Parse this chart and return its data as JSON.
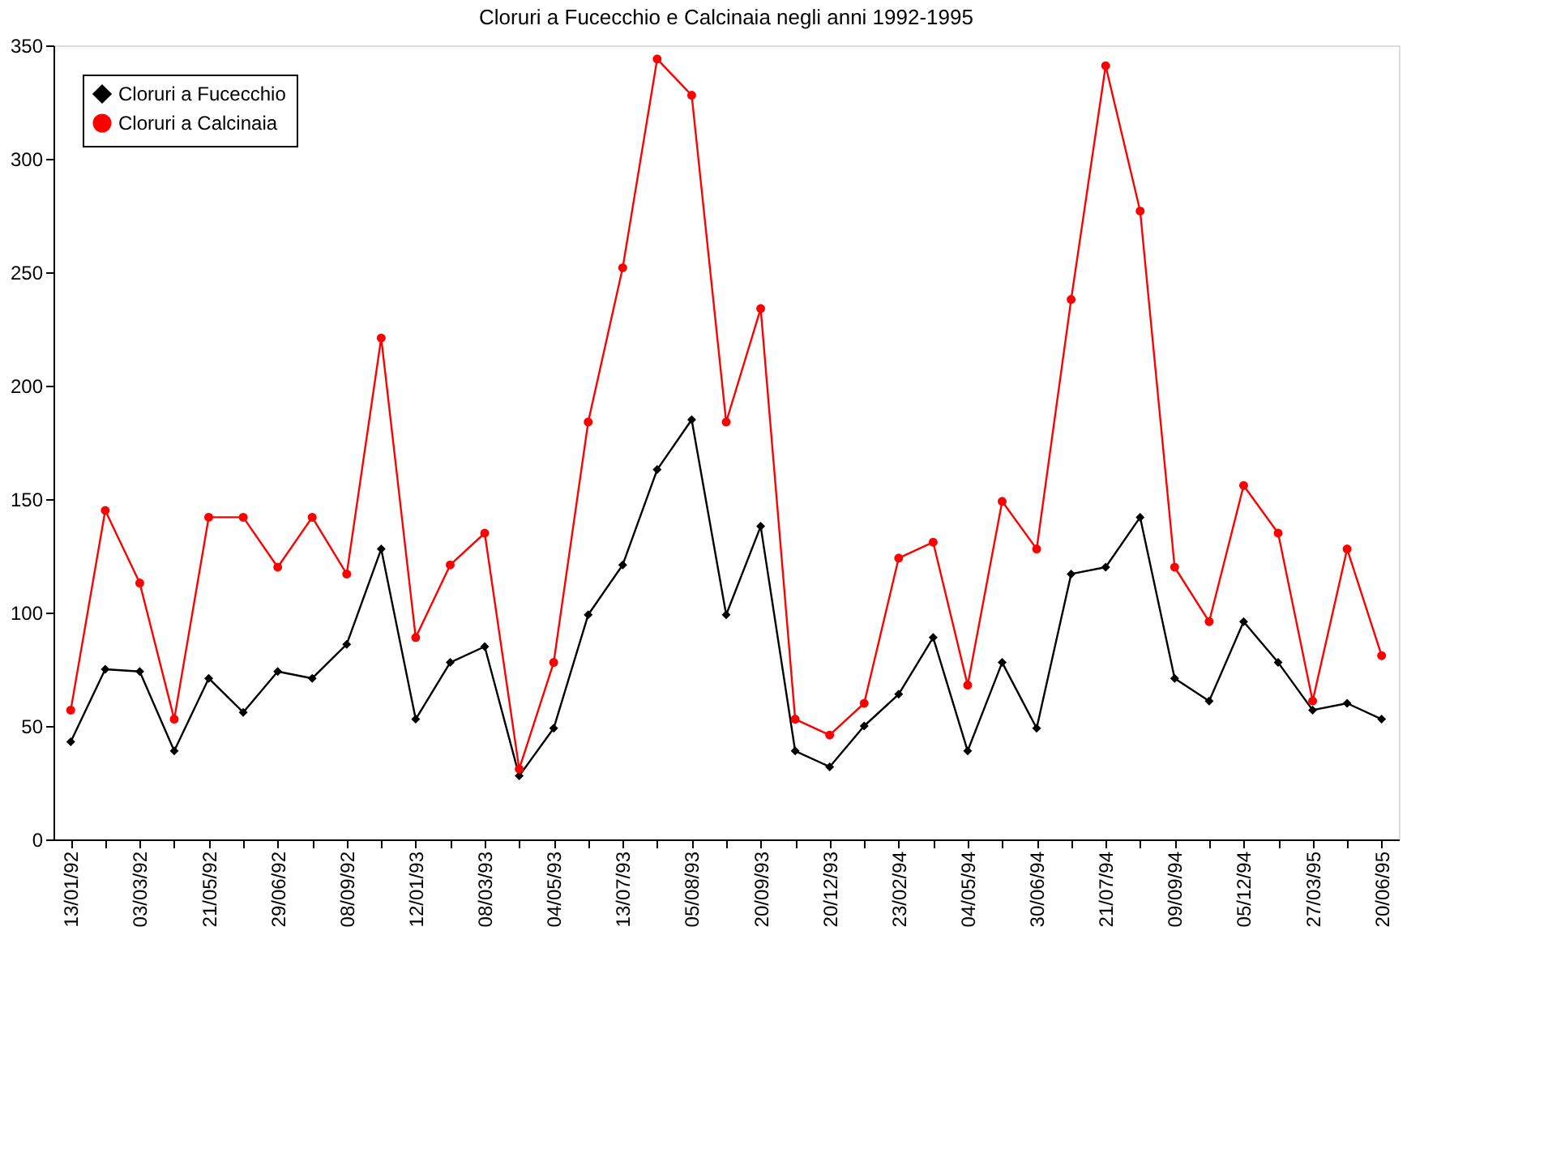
{
  "chart_data": {
    "type": "line",
    "title": "Cloruri a Fucecchio e Calcinaia negli anni 1992-1995",
    "categories": [
      "13/01/92",
      null,
      "03/03/92",
      null,
      "21/05/92",
      null,
      "29/06/92",
      null,
      "08/09/92",
      null,
      "12/01/93",
      null,
      "08/03/93",
      null,
      "04/05/93",
      null,
      "13/07/93",
      null,
      "05/08/93",
      null,
      "20/09/93",
      null,
      "20/12/93",
      null,
      "23/02/94",
      null,
      "04/05/94",
      null,
      "30/06/94",
      null,
      "21/07/94",
      null,
      "09/09/94",
      null,
      "05/12/94",
      null,
      "27/03/95",
      null,
      "20/06/95"
    ],
    "series": [
      {
        "name": "Cloruri a Fucecchio",
        "color": "#000000",
        "marker": "diamond",
        "values": [
          43,
          75,
          74,
          39,
          71,
          56,
          74,
          71,
          86,
          128,
          53,
          78,
          85,
          28,
          49,
          99,
          121,
          163,
          185,
          99,
          138,
          39,
          32,
          50,
          64,
          89,
          39,
          78,
          49,
          117,
          120,
          142,
          71,
          61,
          96,
          78,
          57,
          60,
          53
        ]
      },
      {
        "name": "Cloruri a Calcinaia",
        "color": "#ff0000",
        "marker": "circle",
        "values": [
          57,
          145,
          113,
          53,
          142,
          142,
          120,
          142,
          117,
          221,
          89,
          121,
          135,
          31,
          78,
          184,
          252,
          344,
          328,
          184,
          234,
          53,
          46,
          60,
          124,
          131,
          68,
          149,
          128,
          238,
          341,
          277,
          120,
          96,
          156,
          135,
          61,
          128,
          81
        ]
      }
    ],
    "ylim": [
      0,
      350
    ],
    "yticks": [
      0,
      50,
      100,
      150,
      200,
      250,
      300,
      350
    ],
    "grid": false,
    "legend": "top left",
    "line_style": "solid"
  }
}
